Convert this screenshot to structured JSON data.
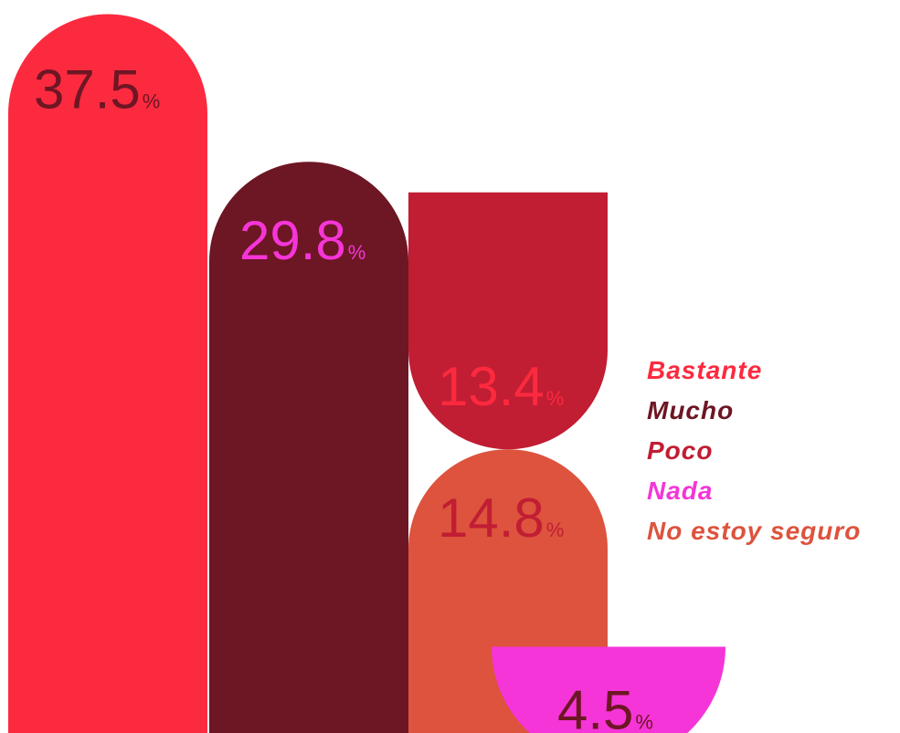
{
  "chart_data": {
    "type": "bar",
    "categories": [
      "Bastante",
      "Mucho",
      "Poco",
      "Nada",
      "No estoy seguro"
    ],
    "series": [
      {
        "values": [
          37.5,
          29.8,
          13.4,
          4.5,
          14.8
        ]
      }
    ],
    "value_suffix": "%",
    "colors": {
      "Bastante": "#fc2a3f",
      "Mucho": "#6d1624",
      "Poco": "#c11d33",
      "Nada": "#f535d7",
      "No estoy seguro": "#dd533d"
    },
    "label_colors": {
      "Bastante": "#6d1624",
      "Mucho": "#f535d7",
      "Poco": "#fc2a3f",
      "Nada": "#6d1624",
      "No estoy seguro": "#c11d33"
    },
    "legend": [
      {
        "label": "Bastante",
        "color": "#fc2a3f"
      },
      {
        "label": "Mucho",
        "color": "#6d1624"
      },
      {
        "label": "Poco",
        "color": "#c11d33"
      },
      {
        "label": "Nada",
        "color": "#f535d7"
      },
      {
        "label": "No estoy seguro",
        "color": "#dd533d"
      }
    ],
    "legend_position": "right",
    "grid": false
  }
}
